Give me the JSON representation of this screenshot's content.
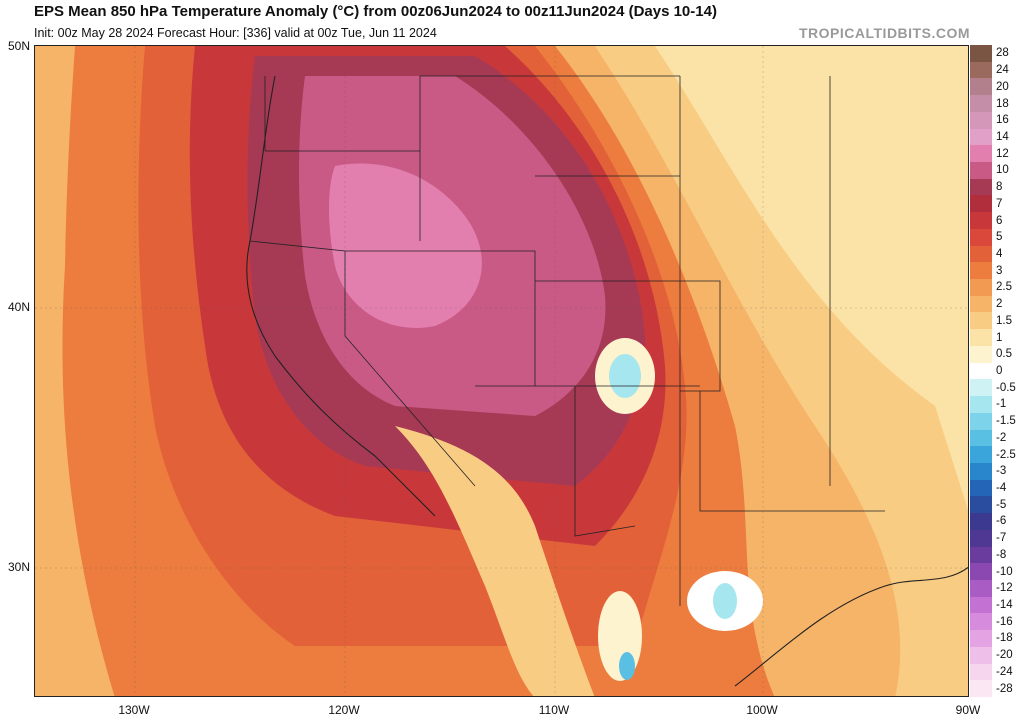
{
  "header": {
    "title": "EPS Mean 850 hPa Temperature Anomaly (°C) from 00z06Jun2024 to 00z11Jun2024 (Days 10-14)",
    "subtitle": "Init: 00z May 28 2024   Forecast Hour: [336]   valid at 00z Tue, Jun 11 2024",
    "brand": "TROPICALTIDBITS.COM"
  },
  "map": {
    "lat_labels": [
      "50N",
      "40N",
      "30N"
    ],
    "lon_labels": [
      "130W",
      "120W",
      "110W",
      "100W",
      "90W"
    ]
  },
  "colorbar": {
    "labels": [
      "28",
      "24",
      "20",
      "18",
      "16",
      "14",
      "12",
      "10",
      "8",
      "7",
      "6",
      "5",
      "4",
      "3",
      "2.5",
      "2",
      "1.5",
      "1",
      "0.5",
      "0",
      "-0.5",
      "-1",
      "-1.5",
      "-2",
      "-2.5",
      "-3",
      "-4",
      "-5",
      "-6",
      "-7",
      "-8",
      "-10",
      "-12",
      "-14",
      "-16",
      "-18",
      "-20",
      "-24",
      "-28"
    ],
    "colors": [
      "#7a5544",
      "#9a6a5e",
      "#b27f8d",
      "#c48ea8",
      "#d497b9",
      "#e1a0c7",
      "#e27fae",
      "#c95a86",
      "#a63a55",
      "#b12f3c",
      "#c8383b",
      "#d9483a",
      "#e26138",
      "#ec7d3e",
      "#f29a52",
      "#f6b468",
      "#f9cc84",
      "#fbe2a6",
      "#fdf3cf",
      "#ffffff",
      "#cff2f5",
      "#a6e6ef",
      "#7dd4ea",
      "#5ac0e3",
      "#3aa5da",
      "#2a86cc",
      "#2465b8",
      "#2a4da0",
      "#3c3a90",
      "#4e3893",
      "#6a3c9e",
      "#8a48b0",
      "#a95cc3",
      "#c372d3",
      "#d68bdd",
      "#e4a4e3",
      "#eebfe9",
      "#f6d6ef",
      "#fbe7f3"
    ]
  }
}
